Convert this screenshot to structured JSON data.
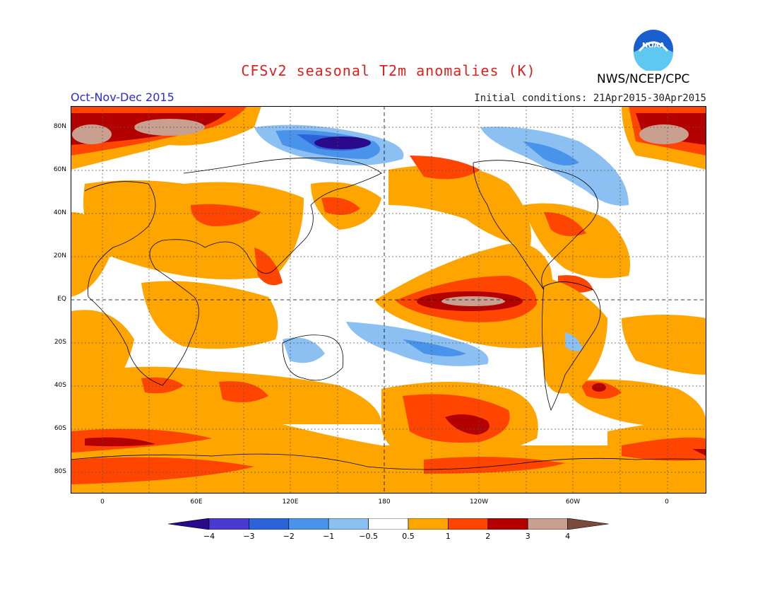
{
  "header": {
    "title": "CFSv2 seasonal T2m anomalies (K)",
    "season": "Oct-Nov-Dec 2015",
    "initial_conditions": "Initial conditions: 21Apr2015-30Apr2015",
    "agency": "NWS/NCEP/CPC",
    "logo_text": "NOAA"
  },
  "map": {
    "lat_labels": [
      "80N",
      "60N",
      "40N",
      "20N",
      "EQ",
      "20S",
      "40S",
      "60S",
      "80S"
    ],
    "lon_labels": [
      "0",
      "60E",
      "120E",
      "180",
      "120W",
      "60W",
      "0"
    ]
  },
  "colorbar": {
    "labels": [
      "-4",
      "-3",
      "-2",
      "-1",
      "-0.5",
      "0.5",
      "1",
      "2",
      "3",
      "4"
    ],
    "colors": [
      "#2a0a8a",
      "#4a3ad0",
      "#2d63d8",
      "#4a93ea",
      "#8cc0f2",
      "#ffffff",
      "#ffa500",
      "#ff4500",
      "#b30000",
      "#c9a08f",
      "#7a4b3a"
    ]
  }
}
